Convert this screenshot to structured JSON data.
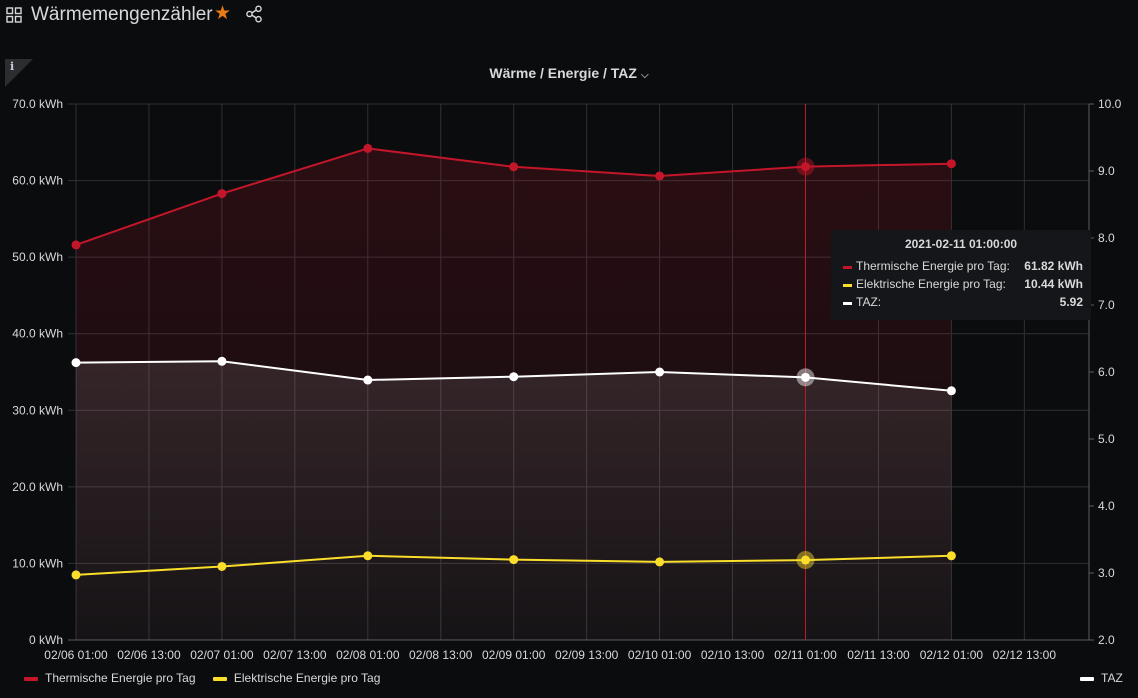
{
  "dashboard": {
    "title": "Wärmemengenzähler",
    "icons": [
      "apps-icon",
      "star-icon",
      "share-icon"
    ],
    "star_color": "#eb7b18"
  },
  "panel": {
    "title": "Wärme / Energie / TAZ",
    "info_label": "i"
  },
  "chart_data": {
    "type": "line",
    "title": "Wärme / Energie / TAZ",
    "x": [
      "02/06 01:00",
      "02/07 01:00",
      "02/08 01:00",
      "02/09 01:00",
      "02/10 01:00",
      "02/11 01:00",
      "02/12 01:00"
    ],
    "x_ticks": [
      "02/06 01:00",
      "02/06 13:00",
      "02/07 01:00",
      "02/07 13:00",
      "02/08 01:00",
      "02/08 13:00",
      "02/09 01:00",
      "02/09 13:00",
      "02/10 01:00",
      "02/10 13:00",
      "02/11 01:00",
      "02/11 13:00",
      "02/12 01:00",
      "02/12 13:00"
    ],
    "y_left": {
      "ticks": [
        "0 kWh",
        "10.0 kWh",
        "20.0 kWh",
        "30.0 kWh",
        "40.0 kWh",
        "50.0 kWh",
        "60.0 kWh",
        "70.0 kWh"
      ],
      "ylim": [
        0,
        70
      ]
    },
    "y_right": {
      "ticks": [
        "2.0",
        "3.0",
        "4.0",
        "5.0",
        "6.0",
        "7.0",
        "8.0",
        "9.0",
        "10.0"
      ],
      "ylim": [
        2,
        10
      ]
    },
    "series": [
      {
        "name": "Thermische Energie pro Tag",
        "axis": "left",
        "color": "#c4162a",
        "fill": true,
        "values": [
          51.6,
          58.3,
          64.2,
          61.8,
          60.6,
          61.82,
          62.2
        ]
      },
      {
        "name": "Elektrische Energie pro Tag",
        "axis": "left",
        "color": "#fade2a",
        "fill": false,
        "values": [
          8.5,
          9.6,
          11.0,
          10.5,
          10.2,
          10.44,
          11.0
        ]
      },
      {
        "name": "TAZ",
        "axis": "right",
        "color": "#ffffff",
        "fill": true,
        "values": [
          6.14,
          6.16,
          5.88,
          5.93,
          6.0,
          5.92,
          5.72
        ]
      }
    ],
    "hover_index": 5,
    "grid": true,
    "legend_position": "bottom"
  },
  "tooltip": {
    "title": "2021-02-11 01:00:00",
    "rows": [
      {
        "label": "Thermische Energie pro Tag:",
        "value": "61.82 kWh",
        "color": "#c4162a"
      },
      {
        "label": "Elektrische Energie pro Tag:",
        "value": "10.44 kWh",
        "color": "#fade2a"
      },
      {
        "label": "TAZ:",
        "value": "5.92",
        "color": "#ffffff"
      }
    ]
  },
  "legend": {
    "left": [
      {
        "label": "Thermische Energie pro Tag",
        "color": "#c4162a"
      },
      {
        "label": "Elektrische Energie pro Tag",
        "color": "#fade2a"
      }
    ],
    "right": [
      {
        "label": "TAZ",
        "color": "#ffffff"
      }
    ]
  }
}
